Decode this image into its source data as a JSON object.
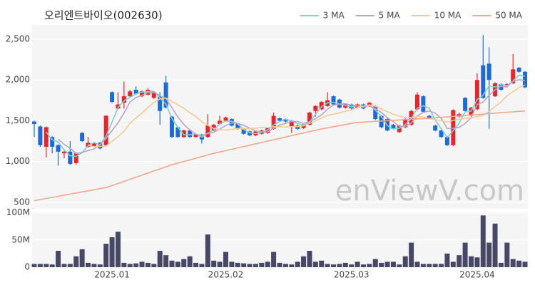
{
  "chart_data": {
    "type": "candlestick",
    "title": "오리엔트바이오(002630)",
    "watermark": "enViewV.com",
    "categories": [
      null,
      null,
      null,
      null,
      null,
      null,
      null,
      null,
      null,
      null,
      null,
      null,
      null,
      "2025.01",
      null,
      null,
      null,
      null,
      null,
      null,
      null,
      null,
      null,
      null,
      null,
      null,
      null,
      null,
      null,
      null,
      null,
      null,
      "2025.02",
      null,
      null,
      null,
      null,
      null,
      null,
      null,
      null,
      null,
      null,
      null,
      null,
      null,
      null,
      null,
      null,
      null,
      null,
      null,
      null,
      "2025.03",
      null,
      null,
      null,
      null,
      null,
      null,
      null,
      null,
      null,
      null,
      null,
      null,
      null,
      null,
      null,
      null,
      null,
      null,
      null,
      null,
      "2025.04",
      null,
      null,
      null,
      null,
      null,
      null,
      null,
      null
    ],
    "open": [
      1490,
      1430,
      1180,
      1300,
      1200,
      1100,
      1120,
      980,
      1350,
      1180,
      1190,
      1230,
      1200,
      1850,
      1650,
      1720,
      1800,
      1880,
      1800,
      1820,
      1780,
      1800,
      1970,
      1550,
      1420,
      1300,
      1380,
      1300,
      1330,
      1300,
      1380,
      1460,
      1500,
      1520,
      1460,
      1400,
      1370,
      1320,
      1340,
      1350,
      1400,
      1530,
      1520,
      1430,
      1440,
      1410,
      1450,
      1620,
      1640,
      1680,
      1800,
      1760,
      1660,
      1700,
      1660,
      1700,
      1680,
      1680,
      1560,
      1520,
      1450,
      1360,
      1420,
      1450,
      1640,
      1800,
      1560,
      1440,
      1380,
      1300,
      1200,
      1550,
      1780,
      1560,
      1640,
      2180,
      2200,
      1800,
      1950,
      1930,
      1960,
      2150,
      2100
    ],
    "high": [
      1500,
      1440,
      1430,
      1310,
      1210,
      1130,
      1250,
      1110,
      1360,
      1300,
      1230,
      1240,
      1570,
      1860,
      1850,
      1980,
      1880,
      1920,
      1870,
      1900,
      1850,
      1850,
      2050,
      1560,
      1430,
      1390,
      1390,
      1340,
      1340,
      1580,
      1460,
      1560,
      1550,
      1530,
      1470,
      1410,
      1380,
      1380,
      1390,
      1420,
      1600,
      1540,
      1530,
      1510,
      1450,
      1460,
      1610,
      1690,
      1740,
      1850,
      1810,
      1770,
      1710,
      1710,
      1710,
      1710,
      1730,
      1690,
      1570,
      1530,
      1460,
      1450,
      1530,
      1630,
      1850,
      1810,
      1570,
      1450,
      1390,
      1310,
      1640,
      1600,
      1790,
      1670,
      2080,
      2550,
      2400,
      1970,
      1960,
      1960,
      2320,
      2160,
      2110
    ],
    "low": [
      1300,
      1180,
      1050,
      1100,
      950,
      1040,
      960,
      960,
      1240,
      1170,
      1180,
      1150,
      1190,
      1720,
      1640,
      1650,
      1790,
      1820,
      1790,
      1810,
      1770,
      1450,
      1650,
      1290,
      1290,
      1290,
      1290,
      1290,
      1220,
      1290,
      1370,
      1450,
      1490,
      1430,
      1390,
      1330,
      1310,
      1310,
      1330,
      1340,
      1390,
      1490,
      1480,
      1350,
      1390,
      1400,
      1440,
      1550,
      1630,
      1670,
      1690,
      1650,
      1650,
      1640,
      1650,
      1640,
      1670,
      1510,
      1410,
      1370,
      1390,
      1350,
      1410,
      1440,
      1630,
      1600,
      1520,
      1370,
      1290,
      1190,
      1190,
      1540,
      1610,
      1550,
      1630,
      1770,
      1400,
      1790,
      1870,
      1920,
      1950,
      2090,
      1900
    ],
    "close": [
      1460,
      1200,
      1420,
      1180,
      1120,
      1120,
      970,
      1100,
      1250,
      1230,
      1220,
      1160,
      1560,
      1730,
      1700,
      1800,
      1860,
      1830,
      1860,
      1880,
      1840,
      1620,
      1660,
      1300,
      1300,
      1380,
      1300,
      1330,
      1270,
      1440,
      1450,
      1500,
      1540,
      1440,
      1400,
      1340,
      1320,
      1370,
      1380,
      1410,
      1560,
      1500,
      1490,
      1500,
      1400,
      1450,
      1600,
      1680,
      1730,
      1750,
      1700,
      1660,
      1700,
      1650,
      1700,
      1650,
      1720,
      1520,
      1420,
      1380,
      1400,
      1440,
      1520,
      1620,
      1820,
      1610,
      1530,
      1380,
      1300,
      1200,
      1630,
      1580,
      1620,
      1660,
      2000,
      1780,
      2000,
      1960,
      1880,
      1950,
      2130,
      2100,
      1910
    ],
    "up_color": "#e8262a",
    "down_color": "#1e6bd6",
    "series": [
      {
        "name": "3 MA",
        "color": "#7ccfd6",
        "values": [
          null,
          null,
          1360,
          1267,
          1240,
          1140,
          1070,
          1063,
          1107,
          1193,
          1233,
          1203,
          1313,
          1483,
          1663,
          1743,
          1787,
          1830,
          1850,
          1857,
          1860,
          1780,
          1707,
          1527,
          1420,
          1327,
          1327,
          1337,
          1300,
          1347,
          1387,
          1463,
          1497,
          1493,
          1460,
          1393,
          1353,
          1343,
          1357,
          1387,
          1450,
          1490,
          1517,
          1497,
          1463,
          1450,
          1483,
          1577,
          1670,
          1720,
          1727,
          1703,
          1687,
          1670,
          1683,
          1667,
          1690,
          1630,
          1553,
          1440,
          1400,
          1407,
          1453,
          1527,
          1653,
          1683,
          1653,
          1507,
          1403,
          1293,
          1377,
          1470,
          1610,
          1620,
          1760,
          1813,
          1927,
          1913,
          1947,
          1930,
          1987,
          2060,
          2047
        ]
      },
      {
        "name": "5 MA",
        "color": "#b8a5c9",
        "values": [
          null,
          null,
          null,
          null,
          1276,
          1208,
          1162,
          1098,
          1112,
          1134,
          1154,
          1206,
          1284,
          1380,
          1474,
          1594,
          1730,
          1784,
          1810,
          1846,
          1854,
          1806,
          1772,
          1660,
          1544,
          1452,
          1388,
          1334,
          1316,
          1344,
          1358,
          1398,
          1440,
          1474,
          1466,
          1444,
          1408,
          1374,
          1362,
          1364,
          1408,
          1448,
          1468,
          1492,
          1490,
          1468,
          1488,
          1526,
          1572,
          1642,
          1692,
          1704,
          1708,
          1692,
          1682,
          1672,
          1684,
          1648,
          1602,
          1538,
          1488,
          1432,
          1432,
          1472,
          1560,
          1602,
          1620,
          1592,
          1532,
          1404,
          1408,
          1418,
          1466,
          1538,
          1698,
          1728,
          1812,
          1880,
          1924,
          1914,
          1984,
          2004,
          1994
        ]
      },
      {
        "name": "10 MA",
        "color": "#f2cb95",
        "values": [
          null,
          null,
          null,
          null,
          null,
          null,
          null,
          null,
          null,
          1205,
          1181,
          1184,
          1191,
          1246,
          1304,
          1374,
          1468,
          1534,
          1595,
          1660,
          1724,
          1768,
          1778,
          1735,
          1695,
          1653,
          1597,
          1553,
          1488,
          1444,
          1405,
          1393,
          1387,
          1395,
          1405,
          1401,
          1403,
          1407,
          1418,
          1415,
          1426,
          1428,
          1421,
          1427,
          1427,
          1438,
          1468,
          1497,
          1532,
          1566,
          1580,
          1596,
          1617,
          1632,
          1662,
          1682,
          1694,
          1678,
          1647,
          1610,
          1580,
          1558,
          1540,
          1537,
          1549,
          1545,
          1526,
          1512,
          1502,
          1482,
          1505,
          1519,
          1529,
          1535,
          1551,
          1568,
          1615,
          1673,
          1731,
          1806,
          1856,
          1908,
          1937
        ]
      },
      {
        "name": "50 MA",
        "color": "#f4a68c",
        "values": [
          520,
          533,
          547,
          560,
          573,
          587,
          600,
          613,
          627,
          640,
          653,
          667,
          680,
          705,
          730,
          756,
          782,
          807,
          833,
          858,
          884,
          909,
          935,
          960,
          980,
          1000,
          1020,
          1040,
          1060,
          1080,
          1100,
          1117,
          1133,
          1150,
          1167,
          1183,
          1200,
          1217,
          1233,
          1250,
          1267,
          1283,
          1300,
          1317,
          1333,
          1350,
          1367,
          1383,
          1400,
          1413,
          1427,
          1440,
          1453,
          1467,
          1480,
          1484,
          1488,
          1493,
          1497,
          1501,
          1505,
          1509,
          1513,
          1518,
          1522,
          1526,
          1530,
          1536,
          1541,
          1547,
          1553,
          1558,
          1564,
          1570,
          1575,
          1581,
          1587,
          1592,
          1598,
          1604,
          1609,
          1615,
          1620
        ]
      }
    ],
    "ylim": [
      420,
      2675
    ],
    "yticks": [
      500,
      {
        "value": 1000,
        "label": "1,000"
      },
      {
        "value": 1500,
        "label": "1,500"
      },
      {
        "value": 2000,
        "label": "2,000"
      },
      {
        "value": 2500,
        "label": "2,500"
      }
    ],
    "grid": true,
    "legend": "top-right",
    "volume": {
      "color": "#474766",
      "ylim": [
        0,
        102000000
      ],
      "yticks": [
        {
          "value": 0,
          "label": "0"
        },
        {
          "value": 50000000,
          "label": "50M"
        },
        {
          "value": 100000000,
          "label": "100M"
        }
      ],
      "values": [
        6000000,
        6000000,
        6000000,
        5000000,
        30000000,
        6000000,
        6000000,
        20000000,
        33000000,
        8000000,
        6000000,
        5000000,
        43000000,
        55000000,
        65000000,
        8000000,
        6000000,
        7000000,
        10000000,
        8000000,
        6000000,
        30000000,
        22000000,
        12000000,
        10000000,
        15000000,
        20000000,
        8000000,
        6000000,
        60000000,
        12000000,
        10000000,
        28000000,
        10000000,
        8000000,
        7000000,
        6000000,
        6000000,
        8000000,
        10000000,
        28000000,
        8000000,
        6000000,
        5000000,
        10000000,
        20000000,
        30000000,
        10000000,
        12000000,
        6000000,
        5000000,
        6000000,
        8000000,
        5000000,
        10000000,
        5000000,
        6000000,
        15000000,
        8000000,
        10000000,
        10000000,
        5000000,
        20000000,
        45000000,
        10000000,
        6000000,
        6000000,
        6000000,
        6000000,
        25000000,
        10000000,
        22000000,
        45000000,
        20000000,
        18000000,
        95000000,
        45000000,
        80000000,
        8000000,
        45000000,
        15000000,
        12000000,
        10000000
      ]
    }
  }
}
